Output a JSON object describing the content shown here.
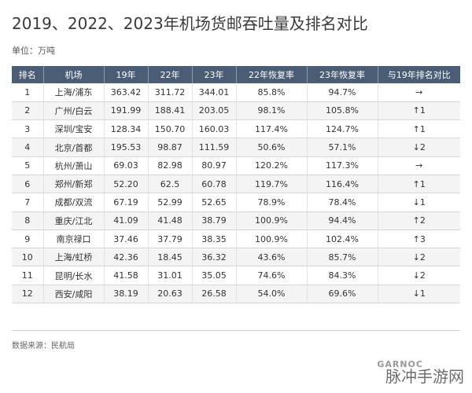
{
  "title": "2019、2022、2023年机场货邮吞吐量及排名对比",
  "unit": "单位：万吨",
  "headers": [
    "排名",
    "机场",
    "19年",
    "22年",
    "23年",
    "22年恢复率",
    "23年恢复率",
    "与19年排名对比"
  ],
  "rows": [
    [
      "1",
      "上海/浦东",
      "363.42",
      "311.72",
      "344.01",
      "85.8%",
      "94.7%",
      "→"
    ],
    [
      "2",
      "广州/白云",
      "191.99",
      "188.41",
      "203.05",
      "98.1%",
      "105.8%",
      "↑1"
    ],
    [
      "3",
      "深圳/宝安",
      "128.34",
      "150.70",
      "160.03",
      "117.4%",
      "124.7%",
      "↑1"
    ],
    [
      "4",
      "北京/首都",
      "195.53",
      "98.87",
      "111.59",
      "50.6%",
      "57.1%",
      "↓2"
    ],
    [
      "5",
      "杭州/萧山",
      "69.03",
      "82.98",
      "80.97",
      "120.2%",
      "117.3%",
      "→"
    ],
    [
      "6",
      "郑州/新郑",
      "52.20",
      "62.5",
      "60.78",
      "119.7%",
      "116.4%",
      "↑1"
    ],
    [
      "7",
      "成都/双流",
      "67.19",
      "52.99",
      "52.65",
      "78.9%",
      "78.4%",
      "↓1"
    ],
    [
      "8",
      "重庆/江北",
      "41.09",
      "41.48",
      "38.79",
      "100.9%",
      "94.4%",
      "↑2"
    ],
    [
      "9",
      "南京禄口",
      "37.46",
      "37.79",
      "38.35",
      "100.9%",
      "102.4%",
      "↑3"
    ],
    [
      "10",
      "上海/虹桥",
      "42.36",
      "18.45",
      "36.32",
      "43.6%",
      "85.7%",
      "↓2"
    ],
    [
      "11",
      "昆明/长水",
      "41.58",
      "31.01",
      "35.05",
      "74.6%",
      "84.3%",
      "↓2"
    ],
    [
      "12",
      "西安/咸阳",
      "38.19",
      "20.63",
      "26.58",
      "54.0%",
      "69.6%",
      "↓1"
    ]
  ],
  "source": "数据来源：民航局",
  "watermark": "脉冲手游网",
  "watermark_logo": "GARNOC"
}
